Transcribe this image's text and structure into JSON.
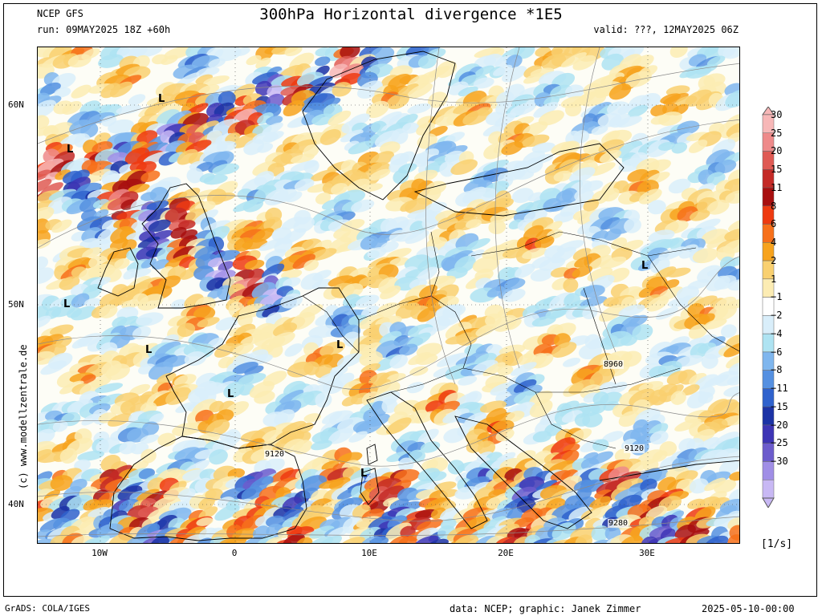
{
  "header": {
    "model": "NCEP GFS",
    "run": "run: 09MAY2025 18Z +60h",
    "title": "300hPa Horizontal divergence *1E5",
    "valid": "valid: ???, 12MAY2025 06Z"
  },
  "axes": {
    "lat_labels": [
      "60N",
      "50N",
      "40N"
    ],
    "lon_labels": [
      "10W",
      "0",
      "10E",
      "20E",
      "30E"
    ]
  },
  "map_labels": {
    "lows": [
      "L",
      "L",
      "L",
      "L",
      "L",
      "L",
      "L",
      "L"
    ],
    "contours": [
      "9120",
      "8960",
      "9120",
      "9280"
    ]
  },
  "colorbar": {
    "levels": [
      "30",
      "25",
      "20",
      "15",
      "11",
      "8",
      "6",
      "4",
      "2",
      "1",
      "−1",
      "−2",
      "−4",
      "−6",
      "−8",
      "−11",
      "−15",
      "−20",
      "−25",
      "−30"
    ],
    "colors": [
      "#f7b7b7",
      "#ee8a8a",
      "#df5a54",
      "#c42a26",
      "#a80f0f",
      "#ee3a10",
      "#f7701a",
      "#f7a31d",
      "#f9d070",
      "#fcecb3",
      "#ffffff",
      "#d9eefa",
      "#aee3f2",
      "#7fb6ee",
      "#5590e1",
      "#2f62cd",
      "#1c33a6",
      "#3e35b5",
      "#6c5ccc",
      "#a08ee6",
      "#c8b8f4"
    ],
    "units": "[1/s]"
  },
  "footer": {
    "software": "GrADS: COLA/IGES",
    "credit": "data: NCEP; graphic: Janek Zimmer",
    "date": "2025-05-10-00:00"
  },
  "side_credit": "(c) www.modellzentrale.de"
}
